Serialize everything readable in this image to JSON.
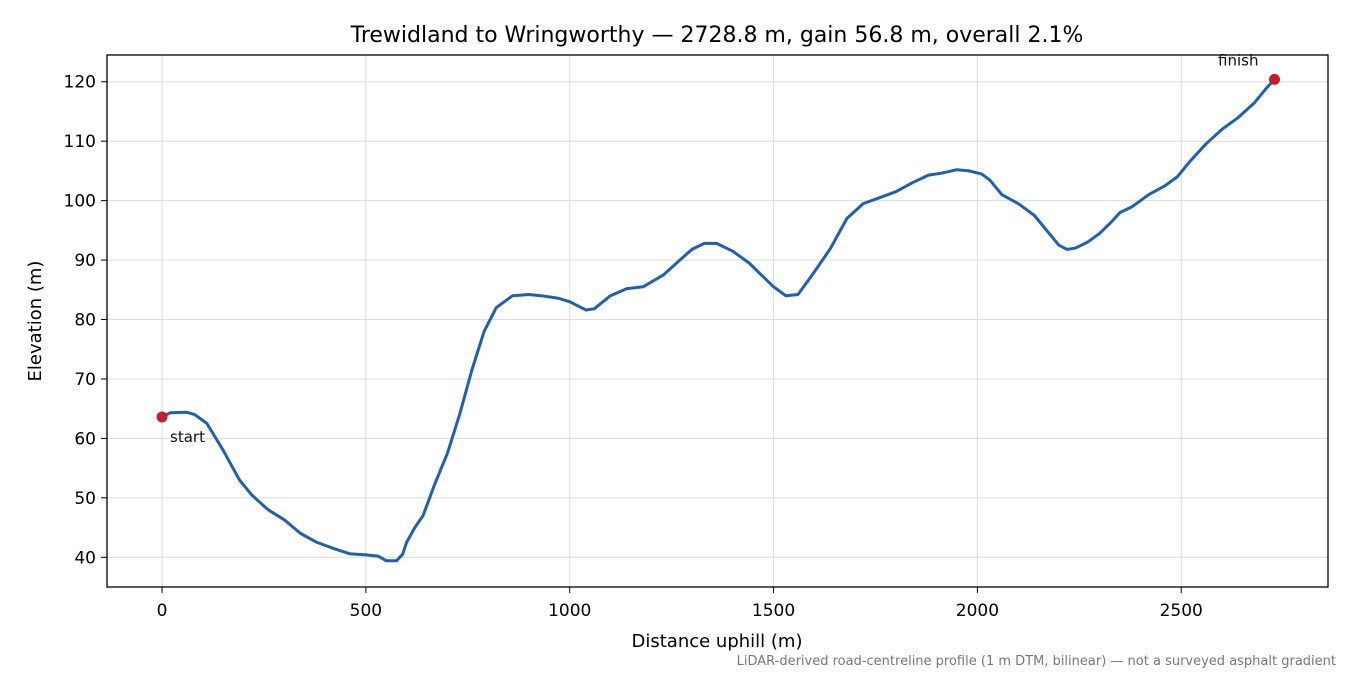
{
  "chart_data": {
    "type": "line",
    "title": "Trewidland to Wringworthy — 2728.8 m, gain 56.8 m, overall 2.1%",
    "xlabel": "Distance uphill (m)",
    "ylabel": "Elevation (m)",
    "xlim": [
      -135,
      2860
    ],
    "ylim": [
      35,
      124.5
    ],
    "xticks": [
      0,
      500,
      1000,
      1500,
      2000,
      2500
    ],
    "yticks": [
      40,
      50,
      60,
      70,
      80,
      90,
      100,
      110,
      120
    ],
    "grid": true,
    "series": [
      {
        "color": "#1f5fb4",
        "x": [
          0,
          20,
          60,
          80,
          110,
          150,
          190,
          220,
          260,
          300,
          340,
          380,
          420,
          460,
          500,
          530,
          550,
          575,
          590,
          600,
          620,
          640,
          670,
          700,
          730,
          760,
          790,
          820,
          860,
          900,
          930,
          970,
          1000,
          1040,
          1060,
          1100,
          1140,
          1180,
          1230,
          1270,
          1300,
          1330,
          1360,
          1400,
          1440,
          1470,
          1500,
          1530,
          1560,
          1600,
          1640,
          1680,
          1720,
          1760,
          1800,
          1840,
          1880,
          1910,
          1950,
          1980,
          2010,
          2030,
          2060,
          2100,
          2140,
          2170,
          2200,
          2220,
          2240,
          2270,
          2300,
          2330,
          2350,
          2380,
          2420,
          2460,
          2490,
          2520,
          2560,
          2600,
          2640,
          2680,
          2710,
          2728.8
        ],
        "y": [
          63.6,
          64.3,
          64.4,
          64.0,
          62.5,
          58.0,
          53.0,
          50.5,
          48.0,
          46.3,
          44.0,
          42.5,
          41.5,
          40.6,
          40.4,
          40.2,
          39.4,
          39.4,
          40.5,
          42.5,
          45.0,
          47.0,
          52.5,
          57.5,
          64.0,
          71.5,
          78.0,
          82.0,
          84.0,
          84.2,
          84.0,
          83.6,
          83.0,
          81.6,
          81.8,
          84.0,
          85.2,
          85.5,
          87.5,
          90.0,
          91.8,
          92.8,
          92.8,
          91.5,
          89.5,
          87.5,
          85.5,
          84.0,
          84.2,
          88.0,
          92.0,
          97.0,
          99.5,
          100.5,
          101.5,
          103.0,
          104.3,
          104.6,
          105.2,
          105.0,
          104.5,
          103.5,
          101.0,
          99.5,
          97.5,
          95.0,
          92.5,
          91.8,
          92.0,
          93.0,
          94.5,
          96.5,
          98.0,
          99.0,
          101.0,
          102.5,
          104.0,
          106.5,
          109.5,
          112.0,
          114.0,
          116.5,
          119.0,
          120.4
        ]
      }
    ],
    "annotations": [
      {
        "text": "start",
        "x": 0,
        "y": 63.6
      },
      {
        "text": "finish",
        "x": 2728.8,
        "y": 120.4
      }
    ],
    "caption": "LiDAR-derived road-centreline profile (1 m DTM, bilinear) — not a surveyed asphalt gradient"
  }
}
